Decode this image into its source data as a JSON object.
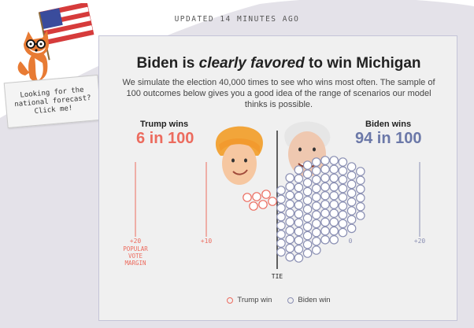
{
  "header": {
    "updated": "UPDATED 14 MINUTES AGO"
  },
  "promo": {
    "text": "Looking for the\nnational forecast?\nClick me!",
    "mascot_icon": "fox-with-flag-icon"
  },
  "card": {
    "title_before": "Biden is ",
    "title_emph": "clearly favored",
    "title_after": " to win Michigan",
    "subtitle": "We simulate the election 40,000 times to see who wins most often. The sample of 100 outcomes below gives you a good idea of the range of scenarios our model thinks is possible."
  },
  "trump": {
    "wins_label": "Trump wins",
    "odds": "6 in 100"
  },
  "biden": {
    "wins_label": "Biden wins",
    "odds": "94 in 100"
  },
  "axis": {
    "left_tick": "+20",
    "left_caption": "POPULAR\nVOTE\nMARGIN",
    "trump_tick": "+10",
    "biden_tick_partial": "0",
    "right_tick": "+20",
    "center": "TIE"
  },
  "legend": {
    "trump": "Trump win",
    "biden": "Biden win"
  },
  "colors": {
    "trump": "#ec6b5e",
    "biden": "#8a8fb3",
    "tie_line": "#222222"
  },
  "chart_data": {
    "type": "scatter",
    "title": "",
    "description_units": "simulated popular vote margin (points)",
    "outcomes": {
      "trump_wins": 6,
      "biden_wins": 94,
      "total": 100
    }
  }
}
